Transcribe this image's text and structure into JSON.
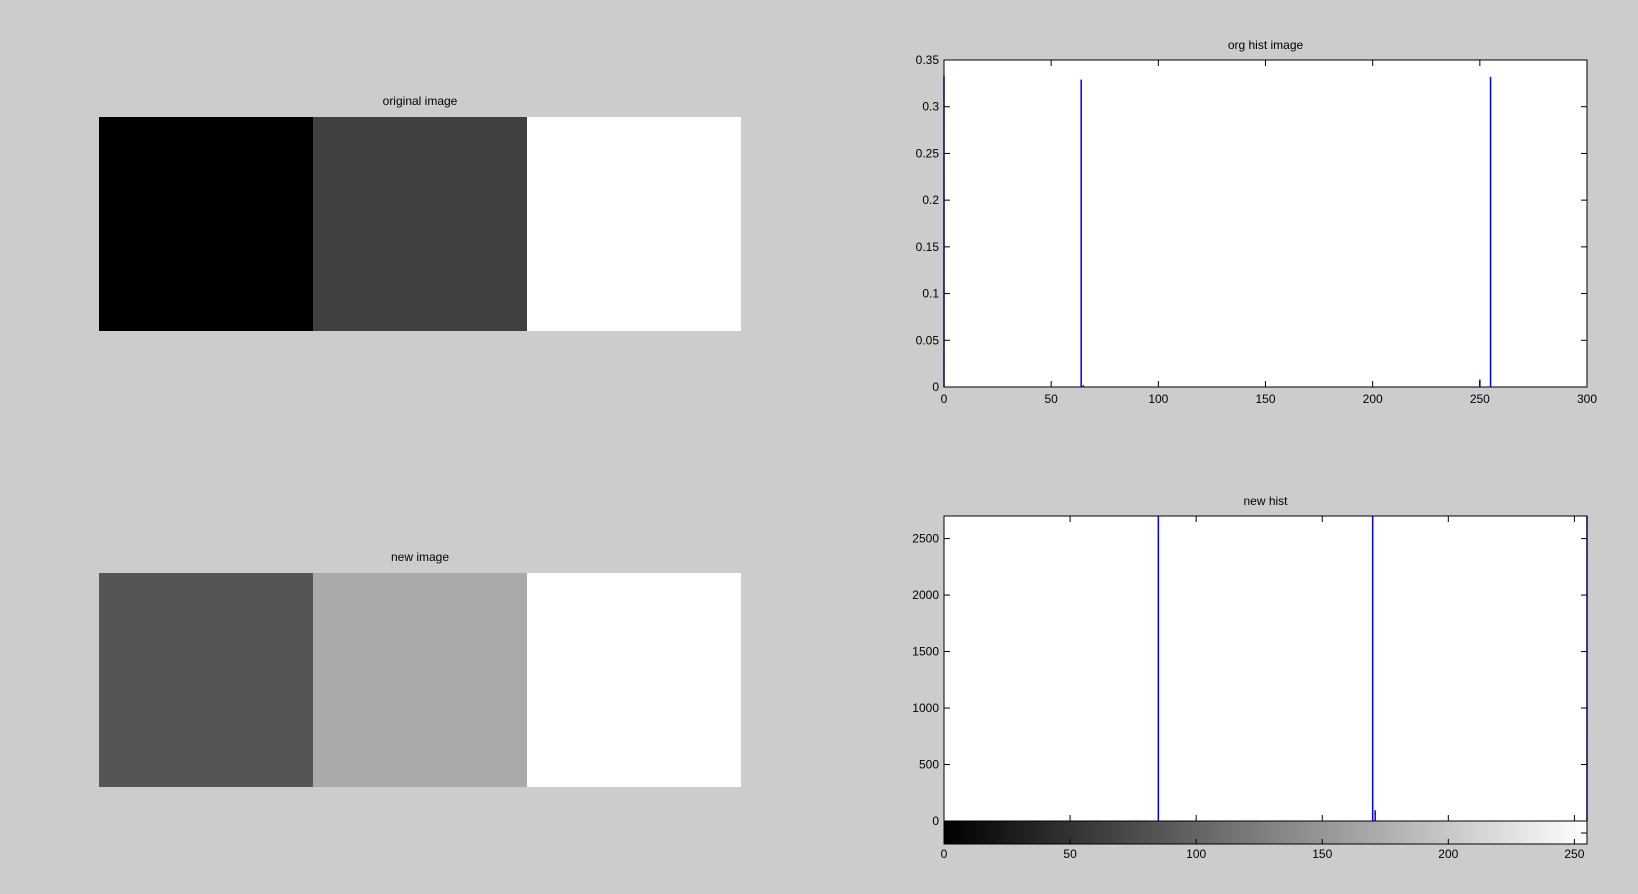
{
  "panels": {
    "original_title": "original image",
    "new_title": "new image",
    "org_hist_title": "org hist image",
    "new_hist_title": "new hist"
  },
  "images": {
    "original": [
      "#000000",
      "#404040",
      "#ffffff"
    ],
    "new": [
      "#555555",
      "#aaaaaa",
      "#ffffff"
    ]
  },
  "colors": {
    "bar": "#0000ff",
    "axes_bg": "#ffffff",
    "figure_bg": "#cccccc"
  },
  "chart_data": [
    {
      "type": "bar",
      "title": "org hist image",
      "xlim": [
        0,
        300
      ],
      "ylim": [
        0,
        0.35
      ],
      "xticks": [
        0,
        50,
        100,
        150,
        200,
        250,
        300
      ],
      "yticks": [
        0,
        0.05,
        0.1,
        0.15,
        0.2,
        0.25,
        0.3,
        0.35
      ],
      "bars": [
        {
          "x": 0,
          "y": 0.333
        },
        {
          "x": 64,
          "y": 0.329
        },
        {
          "x": 65,
          "y": 0.002
        },
        {
          "x": 250,
          "y": 0.008
        },
        {
          "x": 255,
          "y": 0.332
        }
      ]
    },
    {
      "type": "bar",
      "title": "new hist",
      "xlim": [
        0,
        255
      ],
      "ylim": [
        0,
        2700
      ],
      "xticks": [
        0,
        50,
        100,
        150,
        200,
        250
      ],
      "yticks": [
        0,
        500,
        1000,
        1500,
        2000,
        2500
      ],
      "colorbar": true,
      "bars": [
        {
          "x": 85,
          "y": 2700
        },
        {
          "x": 170,
          "y": 2700
        },
        {
          "x": 171,
          "y": 95
        },
        {
          "x": 255,
          "y": 2700
        }
      ]
    }
  ]
}
